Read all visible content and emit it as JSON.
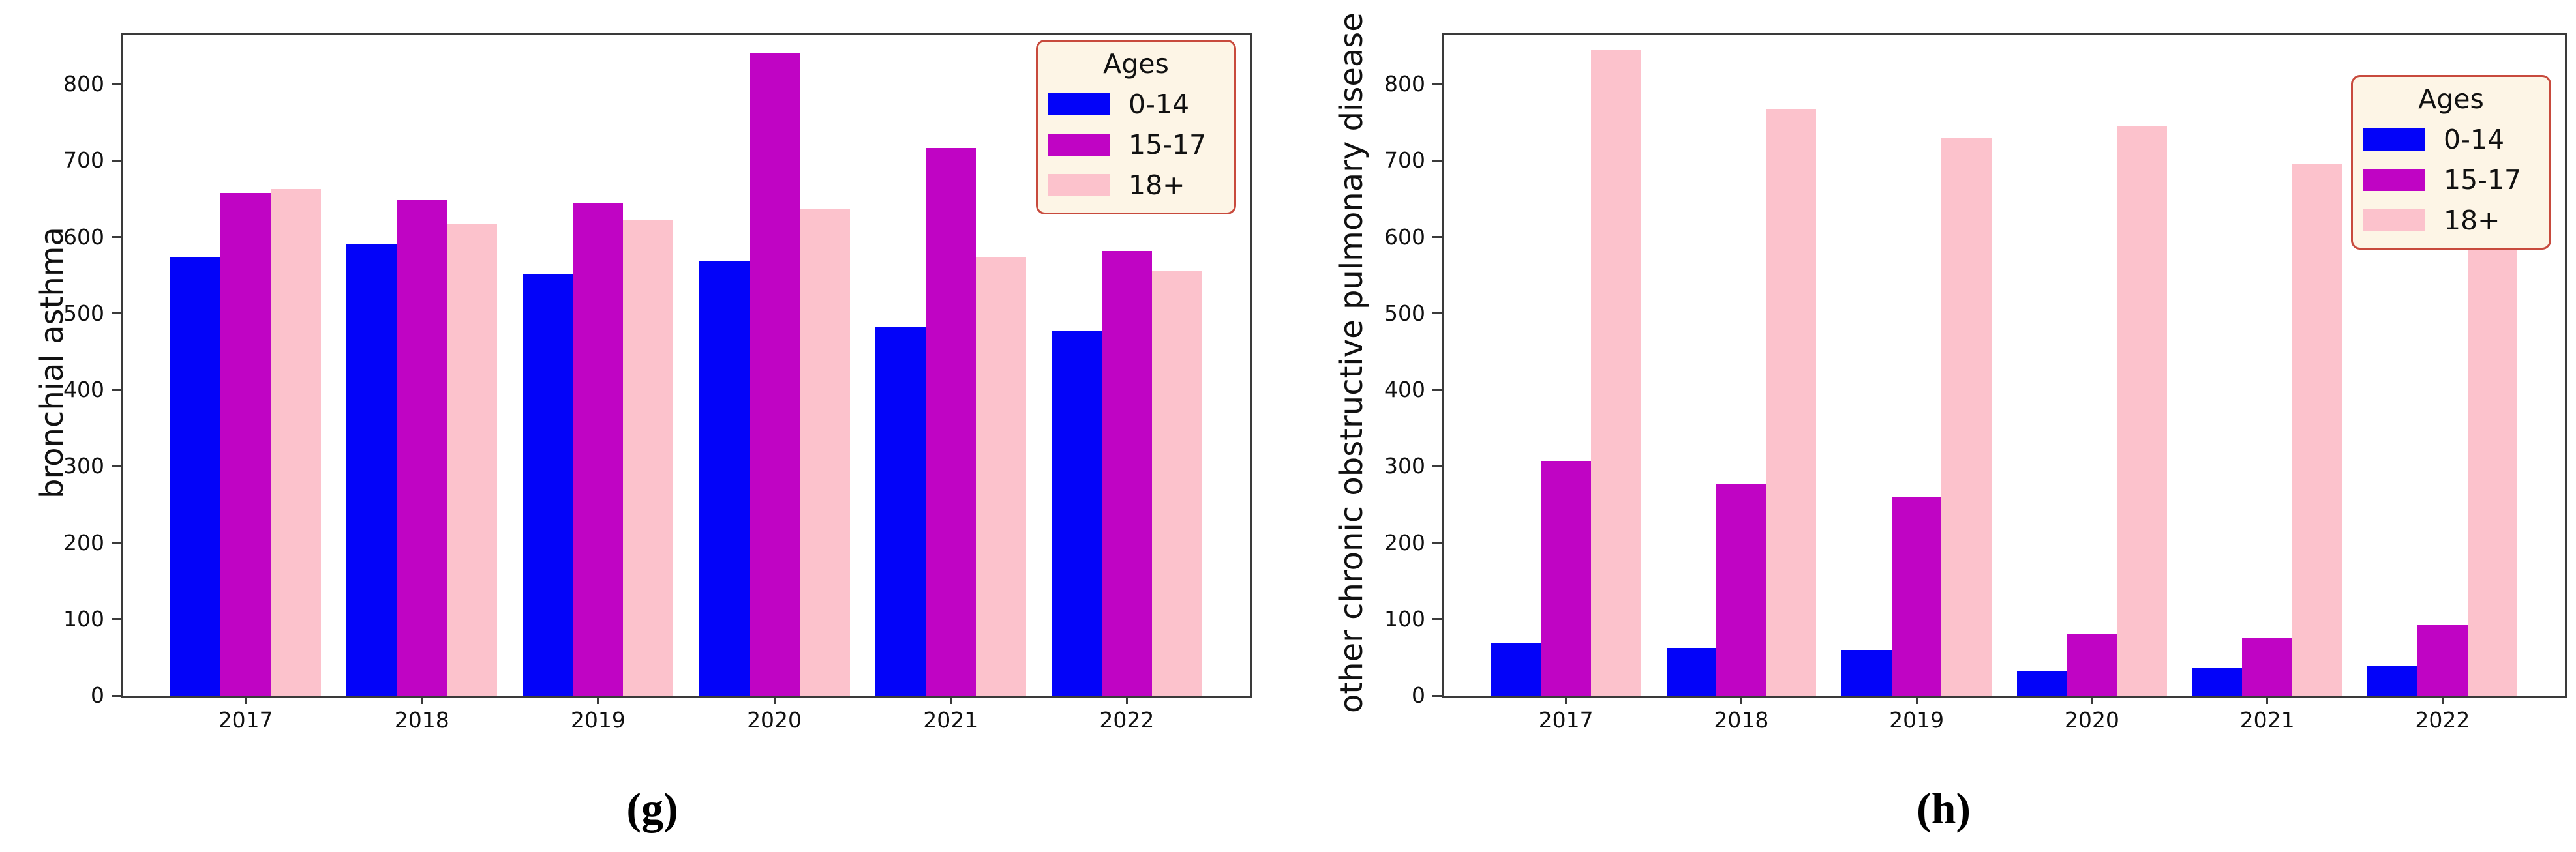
{
  "figure": {
    "background": "#ffffff",
    "spine_color": "#3a3a3a",
    "text_color": "#111111",
    "captions": {
      "left": "(g)",
      "right": "(h)"
    }
  },
  "legend": {
    "title": "Ages",
    "background": "#FDF5E6",
    "border_color": "#C84A3D",
    "entries": [
      {
        "label": "0-14",
        "color": "#0303F9"
      },
      {
        "label": "15-17",
        "color": "#C004C4"
      },
      {
        "label": "18+",
        "color": "#FCC2CC"
      }
    ]
  },
  "chart_data": [
    {
      "type": "bar",
      "title": "",
      "xlabel": "",
      "ylabel": "bronchial asthma",
      "caption": "(g)",
      "categories": [
        "2017",
        "2018",
        "2019",
        "2020",
        "2021",
        "2022"
      ],
      "series": [
        {
          "name": "0-14",
          "color": "#0303F9",
          "values": [
            573,
            590,
            552,
            568,
            483,
            478
          ]
        },
        {
          "name": "15-17",
          "color": "#C004C4",
          "values": [
            658,
            648,
            645,
            840,
            717,
            582
          ]
        },
        {
          "name": "18+",
          "color": "#FCC2CC",
          "values": [
            663,
            618,
            622,
            637,
            573,
            556
          ]
        }
      ],
      "ylim": [
        0,
        865
      ],
      "yticks": [
        0,
        100,
        200,
        300,
        400,
        500,
        600,
        700,
        800
      ],
      "grid": false,
      "legend_position": "upper-right",
      "legend_y_offset": 8
    },
    {
      "type": "bar",
      "title": "",
      "xlabel": "",
      "ylabel": "other chronic obstructive pulmonary disease",
      "caption": "(h)",
      "categories": [
        "2017",
        "2018",
        "2019",
        "2020",
        "2021",
        "2022"
      ],
      "series": [
        {
          "name": "0-14",
          "color": "#0303F9",
          "values": [
            68,
            62,
            60,
            32,
            36,
            38
          ]
        },
        {
          "name": "15-17",
          "color": "#C004C4",
          "values": [
            307,
            277,
            260,
            80,
            76,
            92
          ]
        },
        {
          "name": "18+",
          "color": "#FCC2CC",
          "values": [
            845,
            768,
            730,
            745,
            695,
            610
          ]
        }
      ],
      "ylim": [
        0,
        865
      ],
      "yticks": [
        0,
        100,
        200,
        300,
        400,
        500,
        600,
        700,
        800
      ],
      "grid": false,
      "legend_position": "upper-right",
      "legend_y_offset": 62
    }
  ]
}
